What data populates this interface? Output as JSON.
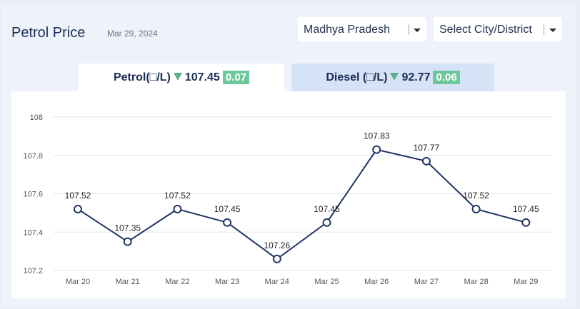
{
  "header": {
    "title": "Petrol Price",
    "date": "Mar 29, 2024"
  },
  "selects": {
    "state": "Madhya Pradesh",
    "city": "Select City/District"
  },
  "tabs": {
    "petrol": {
      "label": "Petrol(□/L)",
      "price": "107.45",
      "change": "0.07"
    },
    "diesel": {
      "label": "Diesel (□/L)",
      "price": "92.77",
      "change": "0.06"
    }
  },
  "colors": {
    "line": "#1f3564",
    "change_badge": "#6cc79a",
    "down_arrow": "#5cb08a"
  },
  "chart_data": {
    "type": "line",
    "categories": [
      "Mar 20",
      "Mar 21",
      "Mar 22",
      "Mar 23",
      "Mar 24",
      "Mar 25",
      "Mar 26",
      "Mar 27",
      "Mar 28",
      "Mar 29"
    ],
    "values": [
      107.52,
      107.35,
      107.52,
      107.45,
      107.26,
      107.45,
      107.83,
      107.77,
      107.52,
      107.45
    ],
    "yticks": [
      "107.2",
      "107.4",
      "107.6",
      "107.8",
      "108"
    ],
    "ylim": [
      107.2,
      108
    ],
    "grid": true,
    "data_labels": true
  }
}
